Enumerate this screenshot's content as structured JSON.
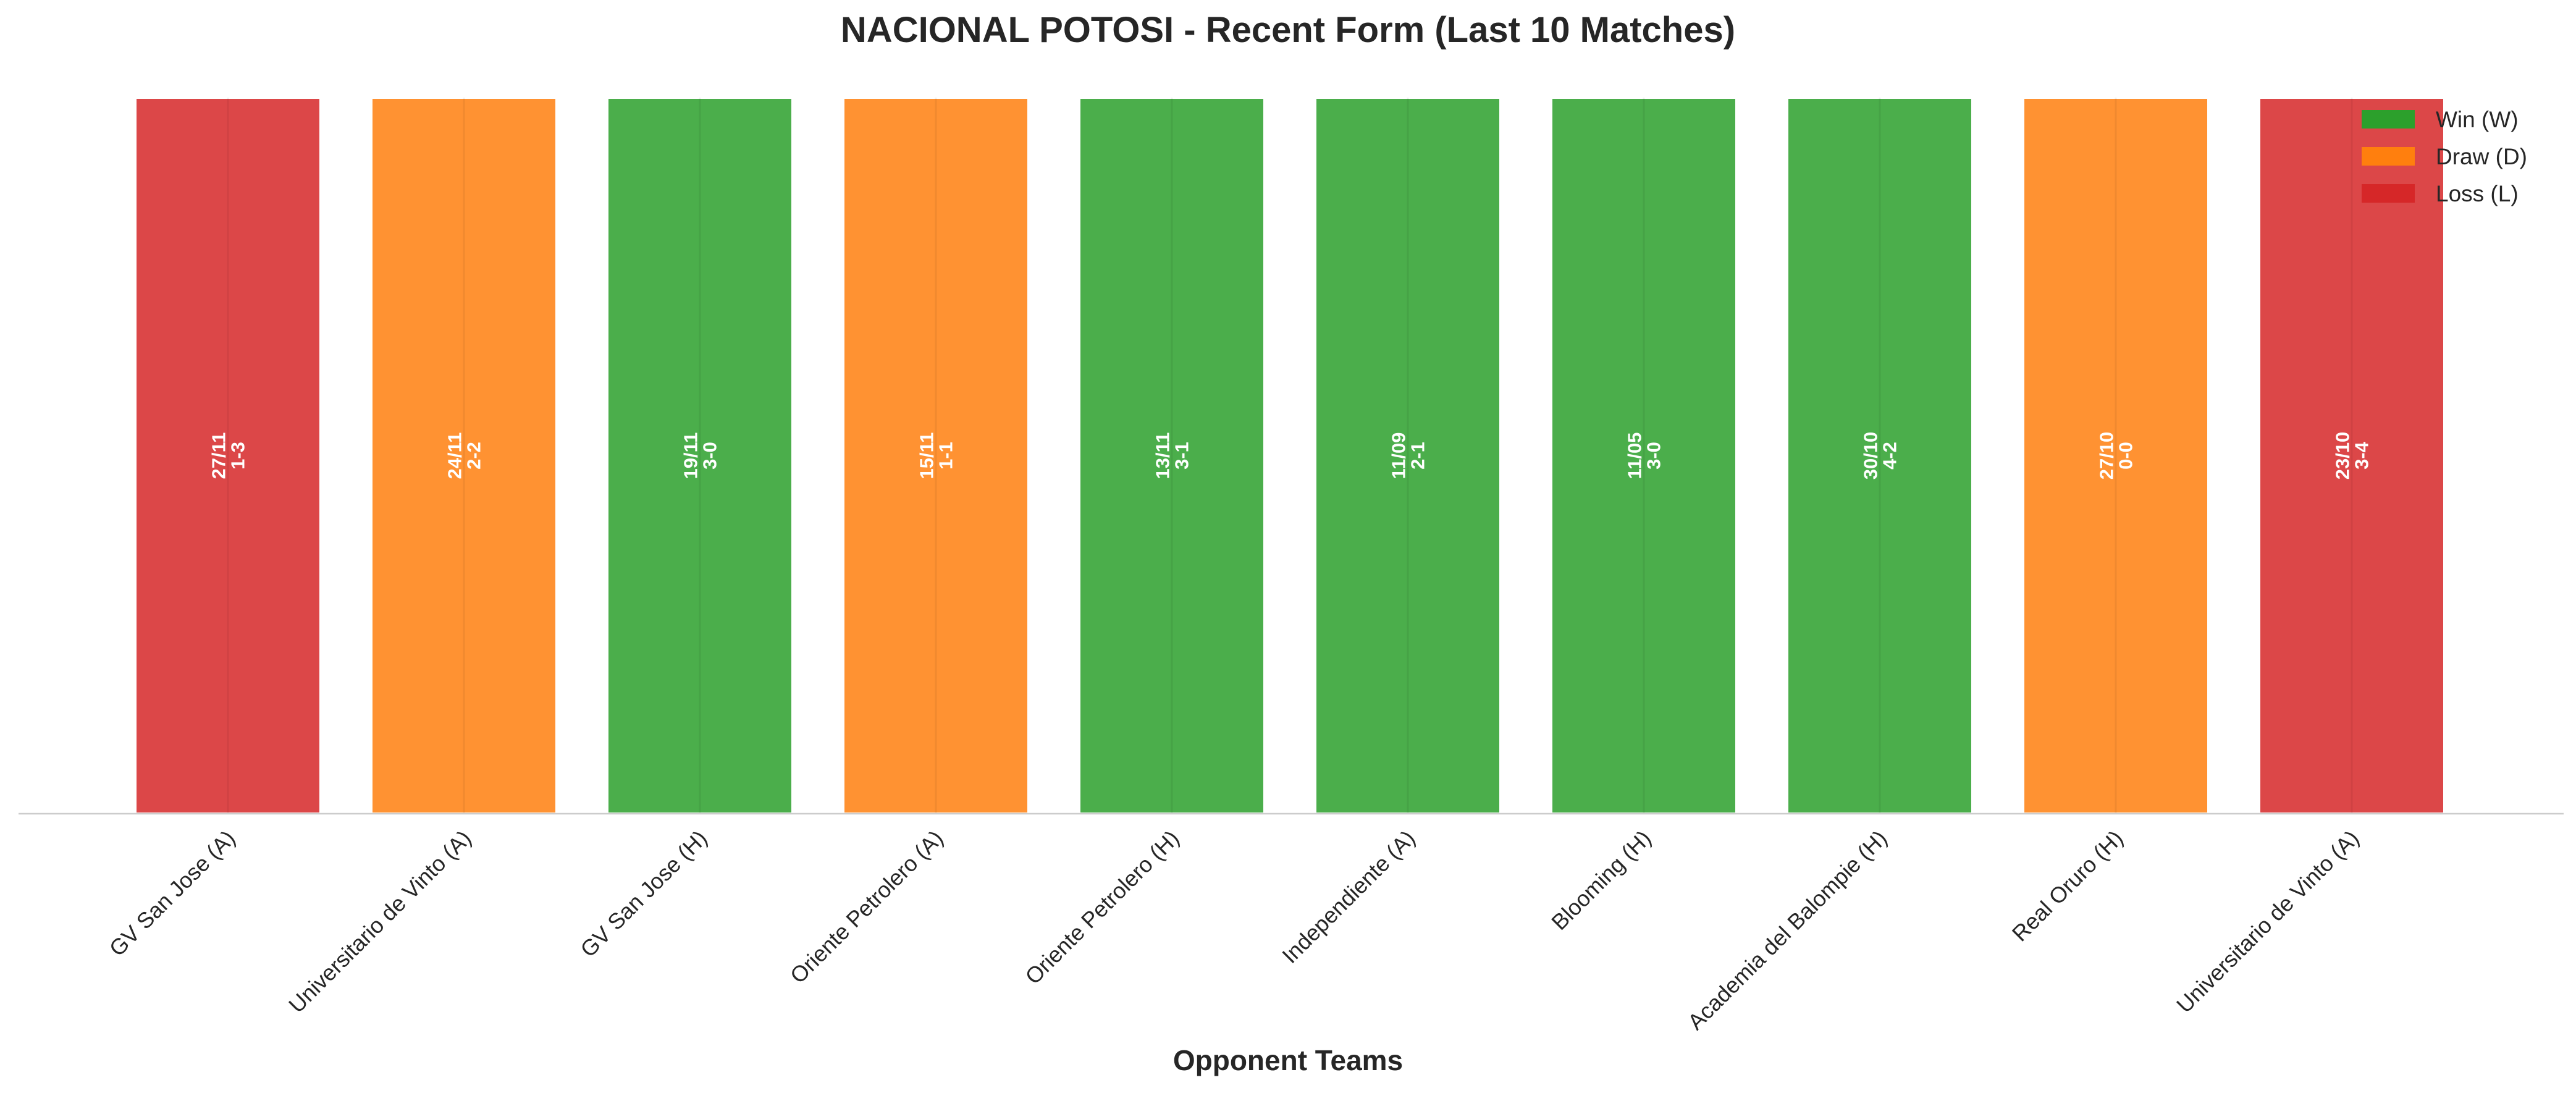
{
  "chart_data": {
    "type": "bar",
    "title": "NACIONAL POTOSI - Recent Form (Last 10 Matches)",
    "xlabel": "Opponent Teams",
    "ylabel": "",
    "grid": false,
    "legend_position": "top-right",
    "categories": [
      "GV San Jose (A)",
      "Universitario de Vinto (A)",
      "GV San Jose (H)",
      "Oriente Petrolero (A)",
      "Oriente Petrolero (H)",
      "Independiente (A)",
      "Blooming (H)",
      "Academia del Balompie (H)",
      "Real Oruro (H)",
      "Universitario de Vinto (A)"
    ],
    "values": [
      1,
      1,
      1,
      1,
      1,
      1,
      1,
      1,
      1,
      1
    ],
    "results": [
      "L",
      "D",
      "W",
      "D",
      "W",
      "W",
      "W",
      "W",
      "D",
      "L"
    ],
    "dates": [
      "27/11",
      "24/11",
      "19/11",
      "15/11",
      "13/11",
      "11/09",
      "11/05",
      "30/10",
      "27/10",
      "23/10"
    ],
    "scores": [
      "1-3",
      "2-2",
      "3-0",
      "1-1",
      "3-1",
      "2-1",
      "3-0",
      "4-2",
      "0-0",
      "3-4"
    ],
    "legend": [
      {
        "key": "W",
        "label": "Win (W)",
        "color": "#2ca02c"
      },
      {
        "key": "D",
        "label": "Draw (D)",
        "color": "#ff7f0e"
      },
      {
        "key": "L",
        "label": "Loss (L)",
        "color": "#d62728"
      }
    ]
  }
}
